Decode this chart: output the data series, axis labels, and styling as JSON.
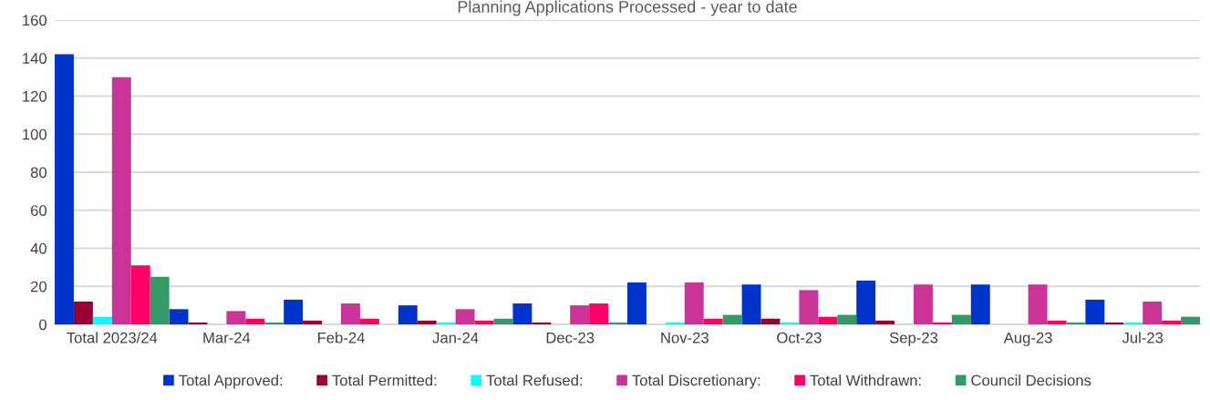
{
  "chart_data": {
    "type": "bar",
    "title": "Planning Applications Processed - year to date",
    "categories": [
      "Total 2023/24",
      "Mar-24",
      "Feb-24",
      "Jan-24",
      "Dec-23",
      "Nov-23",
      "Oct-23",
      "Sep-23",
      "Aug-23",
      "Jul-23"
    ],
    "series": [
      {
        "name": "Total Approved:",
        "color": "#0033cc",
        "values": [
          142,
          8,
          13,
          10,
          11,
          22,
          21,
          23,
          21,
          13
        ]
      },
      {
        "name": "Total Permitted:",
        "color": "#990033",
        "values": [
          12,
          1,
          2,
          2,
          1,
          0,
          3,
          2,
          0,
          1
        ]
      },
      {
        "name": "Total Refused:",
        "color": "#00ffff",
        "values": [
          4,
          0,
          0,
          1,
          0,
          1,
          1,
          0,
          0,
          1
        ]
      },
      {
        "name": "Total Discretionary:",
        "color": "#cc3399",
        "values": [
          130,
          7,
          11,
          8,
          10,
          22,
          18,
          21,
          21,
          12
        ]
      },
      {
        "name": "Total Withdrawn:",
        "color": "#ff0066",
        "values": [
          31,
          3,
          3,
          2,
          11,
          3,
          4,
          1,
          2,
          2
        ]
      },
      {
        "name": "Council Decisions",
        "color": "#339966",
        "values": [
          25,
          1,
          0,
          3,
          1,
          5,
          5,
          5,
          1,
          4
        ]
      }
    ],
    "ylim": [
      0,
      160
    ],
    "yticks": [
      0,
      20,
      40,
      60,
      80,
      100,
      120,
      140,
      160
    ],
    "grid": "y",
    "legend": "bottom"
  }
}
